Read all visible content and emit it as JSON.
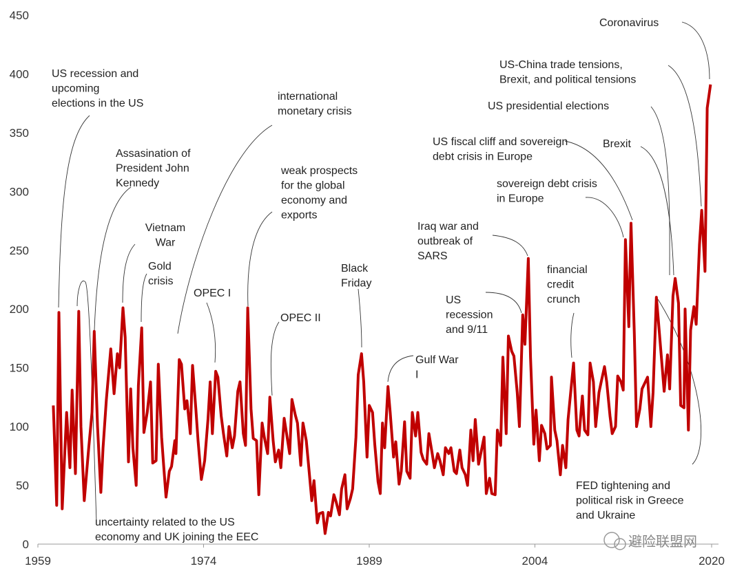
{
  "chart_data": {
    "type": "line",
    "x": [
      1960.4,
      1960.7,
      1960.9,
      1961.2,
      1961.6,
      1961.9,
      1962.1,
      1962.4,
      1962.7,
      1962.9,
      1963.2,
      1963.6,
      1963.9,
      1964.1,
      1964.4,
      1964.7,
      1964.9,
      1965.2,
      1965.6,
      1965.9,
      1966.2,
      1966.4,
      1966.7,
      1966.9,
      1967.2,
      1967.4,
      1967.6,
      1967.9,
      1968.1,
      1968.4,
      1968.6,
      1968.9,
      1969.2,
      1969.4,
      1969.7,
      1969.9,
      1970.2,
      1970.4,
      1970.6,
      1970.9,
      1971.1,
      1971.4,
      1971.5,
      1971.8,
      1972.0,
      1972.3,
      1972.5,
      1972.8,
      1973.0,
      1973.3,
      1973.5,
      1973.8,
      1974.1,
      1974.4,
      1974.6,
      1974.8,
      1975.1,
      1975.3,
      1975.6,
      1975.8,
      1976.1,
      1976.3,
      1976.6,
      1976.8,
      1977.1,
      1977.3,
      1977.6,
      1977.8,
      1978.0,
      1978.3,
      1978.5,
      1978.8,
      1979.0,
      1979.3,
      1979.5,
      1979.8,
      1980.0,
      1980.3,
      1980.5,
      1980.8,
      1981.0,
      1981.3,
      1981.5,
      1981.8,
      1982.0,
      1982.3,
      1982.5,
      1982.8,
      1983.0,
      1983.3,
      1983.5,
      1983.8,
      1984.0,
      1984.3,
      1984.5,
      1984.8,
      1985.0,
      1985.3,
      1985.5,
      1985.8,
      1986.0,
      1986.3,
      1986.5,
      1986.8,
      1987.0,
      1987.3,
      1987.5,
      1987.8,
      1988.0,
      1988.3,
      1988.5,
      1988.8,
      1989.0,
      1989.3,
      1989.5,
      1989.8,
      1990.0,
      1990.2,
      1990.4,
      1990.7,
      1990.9,
      1991.2,
      1991.4,
      1991.7,
      1991.9,
      1992.2,
      1992.4,
      1992.7,
      1992.9,
      1993.2,
      1993.4,
      1993.7,
      1993.9,
      1994.2,
      1994.4,
      1994.7,
      1994.9,
      1995.2,
      1995.4,
      1995.7,
      1995.9,
      1996.2,
      1996.4,
      1996.7,
      1996.9,
      1997.2,
      1997.4,
      1997.7,
      1997.9,
      1998.2,
      1998.4,
      1998.6,
      1998.9,
      1999.1,
      1999.4,
      1999.6,
      1999.9,
      2000.1,
      2000.4,
      2000.6,
      2000.9,
      2001.1,
      2001.4,
      2001.6,
      2001.9,
      2002.1,
      2002.4,
      2002.6,
      2002.9,
      2003.1,
      2003.4,
      2003.6,
      2003.9,
      2004.1,
      2004.4,
      2004.6,
      2004.9,
      2005.1,
      2005.4,
      2005.5,
      2005.8,
      2006.0,
      2006.3,
      2006.5,
      2006.8,
      2007.0,
      2007.3,
      2007.5,
      2007.8,
      2008.0,
      2008.3,
      2008.5,
      2008.8,
      2009.0,
      2009.3,
      2009.5,
      2009.8,
      2010.0,
      2010.3,
      2010.5,
      2010.8,
      2011.0,
      2011.3,
      2011.5,
      2011.8,
      2012.0,
      2012.2,
      2012.5,
      2012.7,
      2013.0,
      2013.2,
      2013.5,
      2013.7,
      2014.0,
      2014.2,
      2014.5,
      2014.7,
      2015.0,
      2015.2,
      2015.5,
      2015.7,
      2016.0,
      2016.2,
      2016.5,
      2016.7,
      2017.0,
      2017.2,
      2017.5,
      2017.6,
      2017.9,
      2018.1,
      2018.4,
      2018.6,
      2018.9,
      2019.1,
      2019.4,
      2019.6,
      2019.9
    ],
    "series": [
      {
        "color": "#c00000",
        "values": [
          118,
          33,
          197,
          30,
          112,
          65,
          131,
          60,
          198,
          100,
          37,
          82,
          112,
          181,
          100,
          44,
          82,
          123,
          166,
          128,
          162,
          150,
          201,
          176,
          70,
          132,
          82,
          50,
          135,
          184,
          95,
          112,
          138,
          69,
          71,
          153,
          91,
          65,
          40,
          62,
          66,
          88,
          77,
          157,
          153,
          115,
          122,
          94,
          152,
          115,
          88,
          55,
          71,
          106,
          138,
          94,
          147,
          142,
          109,
          94,
          75,
          100,
          82,
          92,
          130,
          138,
          94,
          84,
          201,
          115,
          90,
          88,
          42,
          103,
          91,
          77,
          125,
          88,
          70,
          80,
          65,
          107,
          95,
          77,
          123,
          110,
          103,
          67,
          103,
          88,
          68,
          37,
          54,
          18,
          26,
          27,
          9,
          27,
          24,
          42,
          36,
          25,
          47,
          59,
          30,
          39,
          47,
          91,
          144,
          162,
          138,
          74,
          118,
          112,
          85,
          53,
          43,
          103,
          82,
          134,
          112,
          74,
          87,
          51,
          62,
          104,
          62,
          56,
          112,
          92,
          112,
          78,
          72,
          68,
          94,
          77,
          65,
          77,
          71,
          59,
          82,
          77,
          82,
          62,
          60,
          80,
          65,
          59,
          50,
          97,
          71,
          106,
          68,
          77,
          91,
          43,
          56,
          43,
          42,
          97,
          84,
          159,
          94,
          177,
          164,
          160,
          129,
          100,
          195,
          170,
          243,
          159,
          85,
          114,
          71,
          101,
          94,
          81,
          84,
          142,
          97,
          88,
          59,
          84,
          65,
          106,
          135,
          154,
          97,
          92,
          126,
          97,
          93,
          154,
          138,
          100,
          129,
          138,
          151,
          138,
          109,
          94,
          100,
          143,
          138,
          131,
          259,
          185,
          273,
          179,
          100,
          115,
          132,
          138,
          142,
          100,
          129,
          210,
          188,
          153,
          130,
          161,
          132,
          211,
          226,
          205,
          118,
          116,
          200,
          97,
          182,
          202,
          187,
          255,
          284,
          232,
          371,
          391
        ]
      }
    ],
    "xlim": [
      1959,
      2020
    ],
    "xticks": [
      1959,
      1974,
      1989,
      2004,
      2020
    ],
    "ylim": [
      0,
      450
    ],
    "yticks": [
      0,
      50,
      100,
      150,
      200,
      250,
      300,
      350,
      400,
      450
    ],
    "annotations": [
      {
        "lines": [
          "US recession and",
          "upcoming",
          "elections in the US"
        ]
      },
      {
        "lines": [
          "Assasination of",
          "President John",
          "Kennedy"
        ]
      },
      {
        "lines": [
          "uncertainty related to the US",
          "economy and UK joining the EEC"
        ]
      },
      {
        "lines": [
          "Vietnam",
          "War"
        ]
      },
      {
        "lines": [
          "Gold",
          "crisis"
        ]
      },
      {
        "lines": [
          "OPEC I"
        ]
      },
      {
        "lines": [
          "international",
          "monetary crisis"
        ]
      },
      {
        "lines": [
          "weak prospects",
          "for the global",
          "economy and",
          "exports"
        ]
      },
      {
        "lines": [
          "OPEC II"
        ]
      },
      {
        "lines": [
          "Black",
          "Friday"
        ]
      },
      {
        "lines": [
          "Gulf War",
          "I"
        ]
      },
      {
        "lines": [
          "Iraq war and",
          "outbreak of",
          "SARS"
        ]
      },
      {
        "lines": [
          "US",
          "recession",
          "and 9/11"
        ]
      },
      {
        "lines": [
          "financial",
          "credit",
          "crunch"
        ]
      },
      {
        "lines": [
          "US fiscal cliff and sovereign",
          "debt crisis in Europe"
        ]
      },
      {
        "lines": [
          "sovereign debt crisis",
          "in Europe"
        ]
      },
      {
        "lines": [
          "Brexit"
        ]
      },
      {
        "lines": [
          "US presidential elections"
        ]
      },
      {
        "lines": [
          "US-China trade tensions,",
          "Brexit, and political tensions"
        ]
      },
      {
        "lines": [
          "Coronavirus"
        ]
      },
      {
        "lines": [
          "FED tightening and",
          "political risk in Greece",
          "and Ukraine"
        ]
      }
    ],
    "watermark": "避险联盟网"
  }
}
